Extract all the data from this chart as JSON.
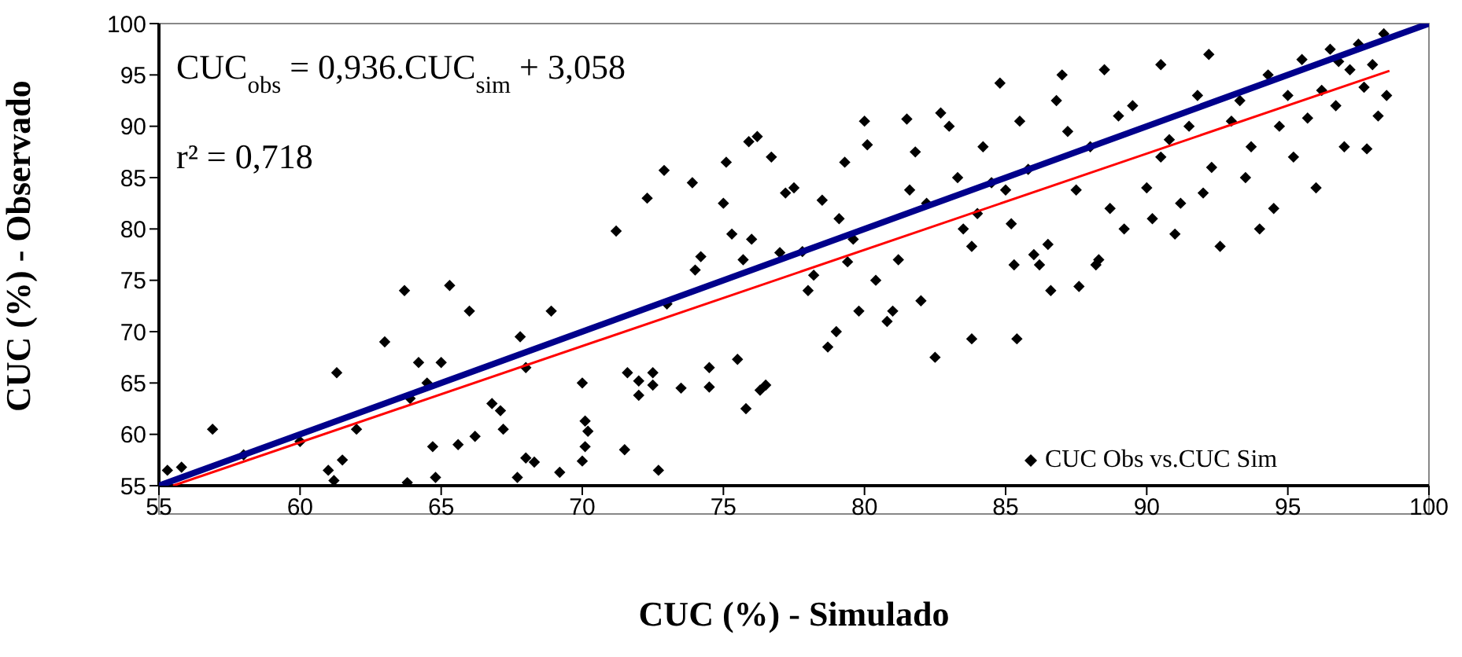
{
  "chart_data": {
    "type": "scatter",
    "xlabel": "CUC (%) - Simulado",
    "ylabel": "CUC (%) - Observado",
    "xlim": [
      55,
      100
    ],
    "ylim": [
      55,
      100
    ],
    "xticks": [
      55,
      60,
      65,
      70,
      75,
      80,
      85,
      90,
      95,
      100
    ],
    "yticks": [
      55,
      60,
      65,
      70,
      75,
      80,
      85,
      90,
      95,
      100
    ],
    "legend": "bottom right",
    "annotations": [
      "CUC$_{obs}$ = 0,936.CUC$_{sim}$ + 3,058",
      "r² = 0,718"
    ],
    "series": [
      {
        "name": "CUC Obs vs.CUC Sim",
        "color": "#000000",
        "marker": "diamond",
        "x": [
          55.3,
          55.8,
          56.9,
          58,
          60,
          61,
          61.2,
          61.3,
          61.5,
          62,
          63,
          63.7,
          63.8,
          63.9,
          64.2,
          64.5,
          64.7,
          64.8,
          65,
          65.3,
          65.6,
          66,
          66.2,
          66.8,
          67.1,
          67.2,
          67.7,
          67.8,
          68,
          68,
          68.3,
          68.9,
          69.2,
          70,
          70.1,
          70.2,
          70.1,
          70,
          71.2,
          71.5,
          71.6,
          72,
          72,
          72.3,
          72.5,
          72.5,
          72.7,
          72.9,
          73,
          73.5,
          73.9,
          74,
          74.2,
          74.5,
          74.5,
          75,
          75.1,
          75.3,
          75.5,
          75.7,
          75.8,
          75.9,
          76,
          76.3,
          76.2,
          76.5,
          76.7,
          77,
          77.2,
          77.5,
          77.8,
          78,
          78.2,
          78.5,
          78.7,
          79,
          79.1,
          79.4,
          79.6,
          79.3,
          79.8,
          80,
          80.1,
          80.4,
          80.8,
          81,
          81.2,
          81.5,
          81.6,
          81.8,
          82,
          82.2,
          82.5,
          82.7,
          83,
          83.3,
          83.5,
          83.8,
          84,
          84.2,
          84.5,
          84.8,
          85,
          85.2,
          85.4,
          85.5,
          85.8,
          86,
          86.2,
          86.5,
          86.6,
          86.8,
          87,
          87.2,
          87.5,
          87.6,
          88,
          88.2,
          88.5,
          88.7,
          89,
          89.2,
          89.5,
          90,
          90.2,
          90.5,
          90.5,
          91,
          91.2,
          91.5,
          91.8,
          92,
          92.3,
          92.6,
          93,
          93.3,
          93.5,
          93.7,
          94,
          94.3,
          94.5,
          94.7,
          95,
          95.2,
          95.5,
          95.7,
          96,
          96.2,
          96.5,
          96.7,
          97,
          97.2,
          97.5,
          97.7,
          98,
          98.2,
          98.4,
          97.8,
          98.5,
          96.8,
          92.2,
          90.8,
          83.8,
          85.3,
          88.3
        ],
        "values": [
          56.5,
          56.8,
          60.5,
          58,
          59.3,
          56.5,
          55.5,
          66,
          57.5,
          60.5,
          69,
          74,
          55.3,
          63.5,
          67,
          65,
          58.8,
          55.8,
          67,
          74.5,
          59,
          72,
          59.8,
          63,
          62.3,
          60.5,
          55.8,
          69.5,
          66.5,
          57.7,
          57.3,
          72,
          56.3,
          65,
          61.3,
          60.3,
          58.8,
          57.4,
          79.8,
          58.5,
          66,
          63.8,
          65.2,
          83,
          64.8,
          66,
          56.5,
          85.7,
          72.7,
          64.5,
          84.5,
          76,
          77.3,
          64.6,
          66.5,
          82.5,
          86.5,
          79.5,
          67.3,
          77,
          62.5,
          88.5,
          79,
          64.3,
          89,
          64.8,
          87,
          77.7,
          83.5,
          84,
          77.8,
          74,
          75.5,
          82.8,
          68.5,
          70,
          81,
          76.8,
          79,
          86.5,
          72,
          90.5,
          88.2,
          75,
          71,
          72,
          77,
          90.7,
          83.8,
          87.5,
          73,
          82.5,
          67.5,
          91.3,
          90,
          85,
          80,
          78.3,
          81.5,
          88,
          84.5,
          94.2,
          83.8,
          80.5,
          69.3,
          90.5,
          85.8,
          77.5,
          76.5,
          78.5,
          74,
          92.5,
          95,
          89.5,
          83.8,
          74.4,
          88,
          76.5,
          95.5,
          82,
          91,
          80,
          92,
          84,
          81,
          87,
          96,
          79.5,
          82.5,
          90,
          93,
          83.5,
          86,
          78.3,
          90.5,
          92.5,
          85,
          88,
          80,
          95,
          82,
          90,
          93,
          87,
          96.5,
          90.8,
          84,
          93.5,
          97.5,
          92,
          88,
          95.5,
          98,
          93.8,
          96,
          91,
          99,
          87.8,
          93,
          96.3,
          97,
          88.7,
          69.3,
          76.5,
          77
        ]
      },
      {
        "type": "line",
        "color": "#00008b",
        "marker": "none",
        "x": [
          55,
          100
        ],
        "values": [
          55,
          100
        ]
      },
      {
        "type": "line",
        "color": "#ff0000",
        "marker": "none",
        "x": [
          55.5,
          98.6
        ],
        "values": [
          55,
          95.4
        ]
      }
    ]
  }
}
